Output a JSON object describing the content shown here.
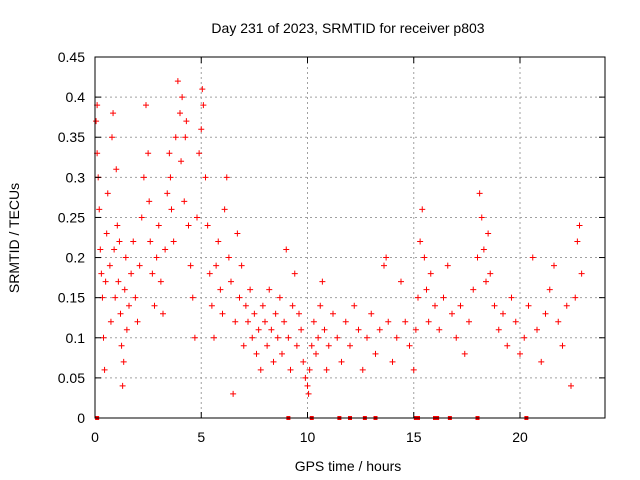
{
  "chart_data": {
    "type": "scatter",
    "marker": "+",
    "title": "Day 231 of 2023, SRMTID for receiver p803",
    "xlabel": "GPS time / hours",
    "ylabel": "SRMTID / TECUs",
    "xlim": [
      0,
      24
    ],
    "ylim": [
      0,
      0.45
    ],
    "x_ticks": [
      {
        "value": 0,
        "label": "0"
      },
      {
        "value": 5,
        "label": "5"
      },
      {
        "value": 10,
        "label": "10"
      },
      {
        "value": 15,
        "label": "15"
      },
      {
        "value": 20,
        "label": "20"
      }
    ],
    "y_ticks": [
      {
        "value": 0,
        "label": "0"
      },
      {
        "value": 0.05,
        "label": "0.05"
      },
      {
        "value": 0.1,
        "label": "0.1"
      },
      {
        "value": 0.15,
        "label": "0.15"
      },
      {
        "value": 0.2,
        "label": "0.2"
      },
      {
        "value": 0.25,
        "label": "0.25"
      },
      {
        "value": 0.3,
        "label": "0.3"
      },
      {
        "value": 0.35,
        "label": "0.35"
      },
      {
        "value": 0.4,
        "label": "0.4"
      },
      {
        "value": 0.45,
        "label": "0.45"
      }
    ],
    "grid": true,
    "series": [
      {
        "name": "SRMTID",
        "color": "#ff0000",
        "points": [
          [
            0.05,
            0.37
          ],
          [
            0.1,
            0.39
          ],
          [
            0.1,
            0.33
          ],
          [
            0.15,
            0.3
          ],
          [
            0.2,
            0.26
          ],
          [
            0.25,
            0.21
          ],
          [
            0.3,
            0.18
          ],
          [
            0.35,
            0.15
          ],
          [
            0.4,
            0.1
          ],
          [
            0.45,
            0.06
          ],
          [
            0.5,
            0.17
          ],
          [
            0.55,
            0.23
          ],
          [
            0.6,
            0.28
          ],
          [
            0.7,
            0.19
          ],
          [
            0.75,
            0.12
          ],
          [
            0.8,
            0.35
          ],
          [
            0.85,
            0.38
          ],
          [
            0.9,
            0.21
          ],
          [
            0.95,
            0.15
          ],
          [
            1.0,
            0.31
          ],
          [
            1.05,
            0.24
          ],
          [
            1.1,
            0.17
          ],
          [
            1.15,
            0.22
          ],
          [
            1.2,
            0.13
          ],
          [
            1.25,
            0.09
          ],
          [
            1.3,
            0.04
          ],
          [
            1.35,
            0.07
          ],
          [
            1.4,
            0.16
          ],
          [
            1.45,
            0.2
          ],
          [
            1.5,
            0.11
          ],
          [
            1.6,
            0.14
          ],
          [
            1.7,
            0.18
          ],
          [
            1.8,
            0.22
          ],
          [
            1.9,
            0.15
          ],
          [
            2.0,
            0.12
          ],
          [
            2.1,
            0.19
          ],
          [
            2.2,
            0.25
          ],
          [
            2.3,
            0.3
          ],
          [
            2.4,
            0.39
          ],
          [
            2.5,
            0.33
          ],
          [
            2.55,
            0.27
          ],
          [
            2.6,
            0.22
          ],
          [
            2.7,
            0.18
          ],
          [
            2.8,
            0.14
          ],
          [
            2.9,
            0.2
          ],
          [
            3.0,
            0.24
          ],
          [
            3.1,
            0.17
          ],
          [
            3.2,
            0.13
          ],
          [
            3.3,
            0.21
          ],
          [
            3.4,
            0.28
          ],
          [
            3.5,
            0.33
          ],
          [
            3.55,
            0.3
          ],
          [
            3.6,
            0.26
          ],
          [
            3.7,
            0.22
          ],
          [
            3.8,
            0.35
          ],
          [
            3.9,
            0.42
          ],
          [
            4.0,
            0.38
          ],
          [
            4.05,
            0.32
          ],
          [
            4.1,
            0.4
          ],
          [
            4.2,
            0.27
          ],
          [
            4.25,
            0.35
          ],
          [
            4.3,
            0.37
          ],
          [
            4.4,
            0.24
          ],
          [
            4.5,
            0.19
          ],
          [
            4.6,
            0.15
          ],
          [
            4.7,
            0.1
          ],
          [
            4.8,
            0.25
          ],
          [
            4.9,
            0.33
          ],
          [
            5.0,
            0.36
          ],
          [
            5.05,
            0.41
          ],
          [
            5.1,
            0.39
          ],
          [
            5.2,
            0.3
          ],
          [
            5.3,
            0.24
          ],
          [
            5.4,
            0.18
          ],
          [
            5.5,
            0.14
          ],
          [
            5.6,
            0.1
          ],
          [
            5.7,
            0.19
          ],
          [
            5.8,
            0.22
          ],
          [
            5.9,
            0.16
          ],
          [
            6.0,
            0.13
          ],
          [
            6.1,
            0.26
          ],
          [
            6.2,
            0.3
          ],
          [
            6.3,
            0.2
          ],
          [
            6.4,
            0.17
          ],
          [
            6.5,
            0.03
          ],
          [
            6.6,
            0.12
          ],
          [
            6.7,
            0.23
          ],
          [
            6.8,
            0.15
          ],
          [
            6.9,
            0.19
          ],
          [
            7.0,
            0.09
          ],
          [
            7.1,
            0.14
          ],
          [
            7.2,
            0.12
          ],
          [
            7.3,
            0.16
          ],
          [
            7.4,
            0.1
          ],
          [
            7.5,
            0.13
          ],
          [
            7.6,
            0.08
          ],
          [
            7.7,
            0.11
          ],
          [
            7.8,
            0.06
          ],
          [
            7.9,
            0.14
          ],
          [
            8.0,
            0.12
          ],
          [
            8.1,
            0.09
          ],
          [
            8.2,
            0.16
          ],
          [
            8.3,
            0.11
          ],
          [
            8.4,
            0.07
          ],
          [
            8.5,
            0.13
          ],
          [
            8.6,
            0.1
          ],
          [
            8.7,
            0.15
          ],
          [
            8.8,
            0.08
          ],
          [
            8.9,
            0.12
          ],
          [
            9.0,
            0.21
          ],
          [
            9.1,
            0.1
          ],
          [
            9.2,
            0.06
          ],
          [
            9.3,
            0.14
          ],
          [
            9.4,
            0.18
          ],
          [
            9.5,
            0.09
          ],
          [
            9.6,
            0.13
          ],
          [
            9.7,
            0.11
          ],
          [
            9.8,
            0.07
          ],
          [
            9.9,
            0.05
          ],
          [
            10.0,
            0.04
          ],
          [
            10.05,
            0.03
          ],
          [
            10.1,
            0.06
          ],
          [
            10.2,
            0.09
          ],
          [
            10.3,
            0.12
          ],
          [
            10.4,
            0.08
          ],
          [
            10.5,
            0.1
          ],
          [
            10.6,
            0.14
          ],
          [
            10.7,
            0.17
          ],
          [
            10.8,
            0.11
          ],
          [
            10.9,
            0.06
          ],
          [
            11.0,
            0.09
          ],
          [
            11.2,
            0.13
          ],
          [
            11.4,
            0.1
          ],
          [
            11.6,
            0.07
          ],
          [
            11.8,
            0.12
          ],
          [
            12.0,
            0.09
          ],
          [
            12.2,
            0.14
          ],
          [
            12.4,
            0.11
          ],
          [
            12.6,
            0.06
          ],
          [
            12.8,
            0.1
          ],
          [
            13.0,
            0.13
          ],
          [
            13.2,
            0.08
          ],
          [
            13.4,
            0.11
          ],
          [
            13.6,
            0.19
          ],
          [
            13.7,
            0.2
          ],
          [
            13.8,
            0.12
          ],
          [
            14.0,
            0.07
          ],
          [
            14.2,
            0.1
          ],
          [
            14.4,
            0.17
          ],
          [
            14.6,
            0.12
          ],
          [
            14.8,
            0.09
          ],
          [
            15.0,
            0.06
          ],
          [
            15.1,
            0.11
          ],
          [
            15.2,
            0.15
          ],
          [
            15.3,
            0.22
          ],
          [
            15.4,
            0.26
          ],
          [
            15.5,
            0.2
          ],
          [
            15.6,
            0.16
          ],
          [
            15.7,
            0.12
          ],
          [
            15.8,
            0.18
          ],
          [
            16.0,
            0.14
          ],
          [
            16.2,
            0.11
          ],
          [
            16.4,
            0.15
          ],
          [
            16.6,
            0.19
          ],
          [
            16.8,
            0.13
          ],
          [
            17.0,
            0.1
          ],
          [
            17.2,
            0.14
          ],
          [
            17.4,
            0.08
          ],
          [
            17.6,
            0.12
          ],
          [
            17.8,
            0.16
          ],
          [
            18.0,
            0.2
          ],
          [
            18.1,
            0.28
          ],
          [
            18.2,
            0.25
          ],
          [
            18.3,
            0.21
          ],
          [
            18.4,
            0.17
          ],
          [
            18.5,
            0.23
          ],
          [
            18.6,
            0.18
          ],
          [
            18.8,
            0.14
          ],
          [
            19.0,
            0.11
          ],
          [
            19.2,
            0.13
          ],
          [
            19.4,
            0.09
          ],
          [
            19.6,
            0.15
          ],
          [
            19.8,
            0.12
          ],
          [
            20.0,
            0.08
          ],
          [
            20.2,
            0.1
          ],
          [
            20.4,
            0.14
          ],
          [
            20.6,
            0.2
          ],
          [
            20.8,
            0.11
          ],
          [
            21.0,
            0.07
          ],
          [
            21.2,
            0.13
          ],
          [
            21.4,
            0.16
          ],
          [
            21.6,
            0.19
          ],
          [
            21.8,
            0.12
          ],
          [
            22.0,
            0.09
          ],
          [
            22.2,
            0.14
          ],
          [
            22.4,
            0.04
          ],
          [
            22.6,
            0.15
          ],
          [
            22.7,
            0.22
          ],
          [
            22.8,
            0.24
          ],
          [
            22.9,
            0.18
          ]
        ]
      }
    ],
    "zero_markers": [
      0.1,
      9.1,
      10.2,
      11.5,
      12.0,
      12.7,
      13.2,
      15.1,
      15.2,
      16.0,
      16.1,
      16.7,
      18.0,
      20.3
    ]
  }
}
